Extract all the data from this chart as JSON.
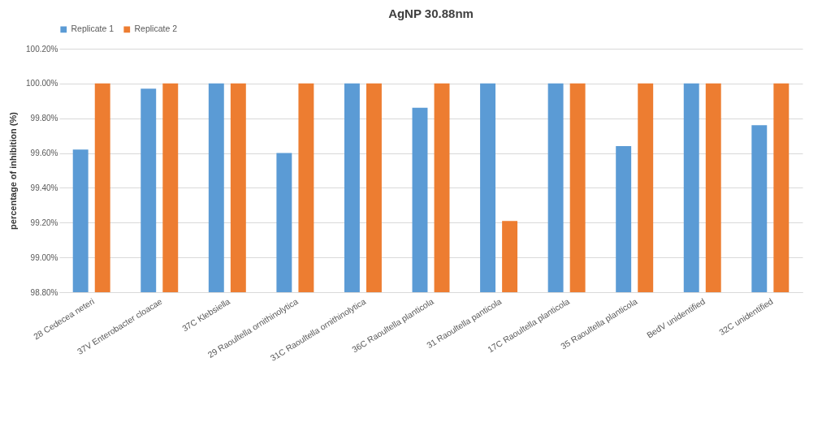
{
  "chart_data": {
    "type": "bar",
    "title": "AgNP 30.88nm",
    "ylabel": "percentage of inhibition (%)",
    "categories": [
      "28 Cedecea neteri",
      "37V Enterobacter cloacae",
      "37C Klebsiella",
      "29 Raoultella ornithinolytica",
      "31C Raoultella ornithinolytica",
      "36C Raoultella planticola",
      "31 Raoultella panticola",
      "17C Raoultella planticola",
      "35 Raoultella planticola",
      "BedV unidentified",
      "32C unidentified"
    ],
    "series": [
      {
        "name": "Replicate 1",
        "color": "#5b9bd5",
        "values": [
          99.62,
          99.97,
          100,
          99.6,
          100,
          99.86,
          100,
          100,
          99.64,
          100,
          99.76
        ]
      },
      {
        "name": "Replicate 2",
        "color": "#ed7d31",
        "values": [
          100,
          100,
          100,
          100,
          100,
          100,
          99.21,
          100,
          100,
          100,
          100
        ]
      }
    ],
    "ylim": [
      98.8,
      100.2
    ],
    "yticks": [
      {
        "value": 98.8,
        "label": "98.80%"
      },
      {
        "value": 99,
        "label": "99.00%"
      },
      {
        "value": 99.2,
        "label": "99.20%"
      },
      {
        "value": 99.4,
        "label": "99.40%"
      },
      {
        "value": 99.6,
        "label": "99.60%"
      },
      {
        "value": 99.8,
        "label": "99.80%"
      },
      {
        "value": 100,
        "label": "100.00%"
      },
      {
        "value": 100.2,
        "label": "100.20%"
      }
    ],
    "grid": "y",
    "legend": "top"
  }
}
